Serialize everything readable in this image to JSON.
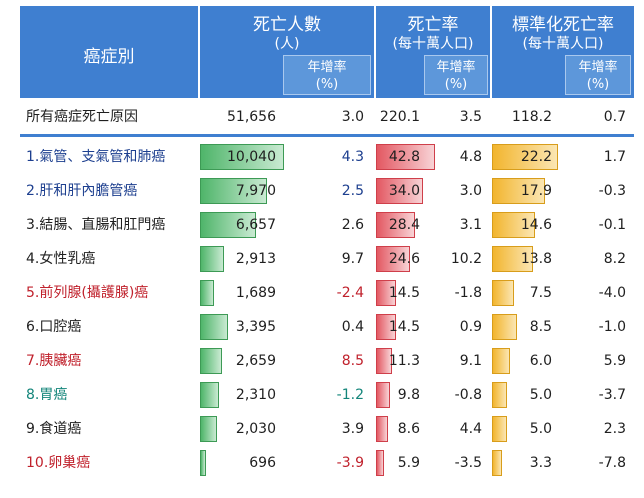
{
  "header": {
    "cancer_type": "癌症別",
    "deaths": "死亡人數",
    "deaths_unit": "(人)",
    "rate": "死亡率",
    "rate_unit": "(每十萬人口)",
    "std_rate": "標準化死亡率",
    "std_rate_unit": "(每十萬人口)",
    "growth_line1": "年增率",
    "growth_line2": "(%)"
  },
  "colors": {
    "header_bg": "#3f7fd0",
    "deaths_bar": "#4fb56a",
    "rate_bar": "#e35862",
    "std_rate_bar": "#f2b52e",
    "dark_text": "#1f1f1f",
    "blue_text": "#1d3f8f",
    "red_text": "#c0212c",
    "teal_text": "#13857a"
  },
  "chart_data": {
    "type": "table",
    "columns": [
      "癌症別",
      "死亡人數 (人)",
      "年增率 (%)",
      "死亡率 (每十萬人口)",
      "年增率 (%)",
      "標準化死亡率 (每十萬人口)",
      "年增率 (%)"
    ],
    "total": {
      "name": "所有癌症死亡原因",
      "deaths": "51,656",
      "deaths_growth": "3.0",
      "rate": "220.1",
      "rate_growth": "3.5",
      "std_rate": "118.2",
      "std_growth": "0.7"
    },
    "rows": [
      {
        "name": "1.氣管、支氣管和肺癌",
        "color": "blue",
        "deaths": "10,040",
        "deaths_value": 10040,
        "deaths_growth": "4.3",
        "growth_color": "blue",
        "rate": "42.8",
        "rate_value": 42.8,
        "rate_growth": "4.8",
        "std_rate": "22.2",
        "std_value": 22.2,
        "std_growth": "1.7"
      },
      {
        "name": "2.肝和肝內膽管癌",
        "color": "blue",
        "deaths": "7,970",
        "deaths_value": 7970,
        "deaths_growth": "2.5",
        "growth_color": "blue",
        "rate": "34.0",
        "rate_value": 34.0,
        "rate_growth": "3.0",
        "std_rate": "17.9",
        "std_value": 17.9,
        "std_growth": "-0.3"
      },
      {
        "name": "3.結腸、直腸和肛門癌",
        "color": "dark",
        "deaths": "6,657",
        "deaths_value": 6657,
        "deaths_growth": "2.6",
        "growth_color": "dark",
        "rate": "28.4",
        "rate_value": 28.4,
        "rate_growth": "3.1",
        "std_rate": "14.6",
        "std_value": 14.6,
        "std_growth": "-0.1"
      },
      {
        "name": "4.女性乳癌",
        "color": "dark",
        "deaths": "2,913",
        "deaths_value": 2913,
        "deaths_growth": "9.7",
        "growth_color": "dark",
        "rate": "24.6",
        "rate_value": 24.6,
        "rate_growth": "10.2",
        "std_rate": "13.8",
        "std_value": 13.8,
        "std_growth": "8.2"
      },
      {
        "name": "5.前列腺(攝護腺)癌",
        "color": "red",
        "deaths": "1,689",
        "deaths_value": 1689,
        "deaths_growth": "-2.4",
        "growth_color": "red",
        "rate": "14.5",
        "rate_value": 14.5,
        "rate_growth": "-1.8",
        "std_rate": "7.5",
        "std_value": 7.5,
        "std_growth": "-4.0"
      },
      {
        "name": "6.口腔癌",
        "color": "dark",
        "deaths": "3,395",
        "deaths_value": 3395,
        "deaths_growth": "0.4",
        "growth_color": "dark",
        "rate": "14.5",
        "rate_value": 14.5,
        "rate_growth": "0.9",
        "std_rate": "8.5",
        "std_value": 8.5,
        "std_growth": "-1.0"
      },
      {
        "name": "7.胰臟癌",
        "color": "red",
        "deaths": "2,659",
        "deaths_value": 2659,
        "deaths_growth": "8.5",
        "growth_color": "red",
        "rate": "11.3",
        "rate_value": 11.3,
        "rate_growth": "9.1",
        "std_rate": "6.0",
        "std_value": 6.0,
        "std_growth": "5.9"
      },
      {
        "name": "8.胃癌",
        "color": "teal",
        "deaths": "2,310",
        "deaths_value": 2310,
        "deaths_growth": "-1.2",
        "growth_color": "teal",
        "rate": "9.8",
        "rate_value": 9.8,
        "rate_growth": "-0.8",
        "std_rate": "5.0",
        "std_value": 5.0,
        "std_growth": "-3.7"
      },
      {
        "name": "9.食道癌",
        "color": "dark",
        "deaths": "2,030",
        "deaths_value": 2030,
        "deaths_growth": "3.9",
        "growth_color": "dark",
        "rate": "8.6",
        "rate_value": 8.6,
        "rate_growth": "4.4",
        "std_rate": "5.0",
        "std_value": 5.0,
        "std_growth": "2.3"
      },
      {
        "name": "10.卵巢癌",
        "color": "red",
        "deaths": "696",
        "deaths_value": 696,
        "deaths_growth": "-3.9",
        "growth_color": "red",
        "rate": "5.9",
        "rate_value": 5.9,
        "rate_growth": "-3.5",
        "std_rate": "3.3",
        "std_value": 3.3,
        "std_growth": "-7.8"
      }
    ]
  }
}
